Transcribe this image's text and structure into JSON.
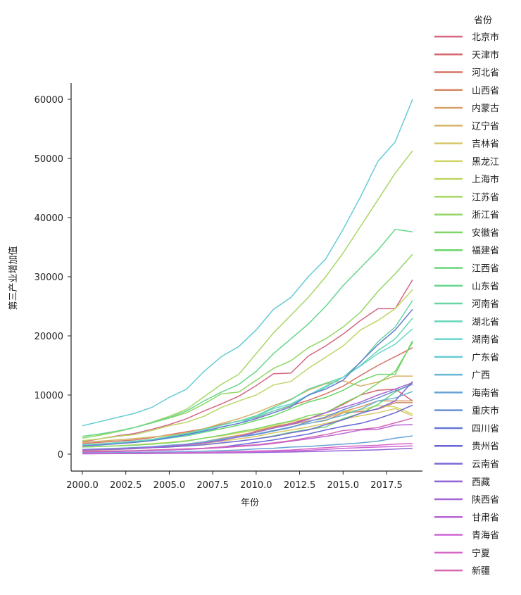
{
  "chart_data": {
    "type": "line",
    "title": "",
    "xlabel": "年份",
    "ylabel": "第三产业增加值",
    "xlim": [
      1999.2,
      2019.6
    ],
    "ylim": [
      -3000,
      63000
    ],
    "grid": false,
    "legend_placement": "right-outside",
    "legend_title": "省份",
    "xticks": [
      2000.0,
      2002.5,
      2005.0,
      2007.5,
      2010.0,
      2012.5,
      2015.0,
      2017.5
    ],
    "xtick_labels": [
      "2000.0",
      "2002.5",
      "2005.0",
      "2007.5",
      "2010.0",
      "2012.5",
      "2015.0",
      "2017.5"
    ],
    "yticks": [
      0,
      10000,
      20000,
      30000,
      40000,
      50000,
      60000
    ],
    "ytick_labels": [
      "0",
      "10000",
      "20000",
      "30000",
      "40000",
      "50000",
      "60000"
    ],
    "x": [
      2000,
      2001,
      2002,
      2003,
      2004,
      2005,
      2006,
      2007,
      2008,
      2009,
      2010,
      2011,
      2012,
      2013,
      2014,
      2015,
      2016,
      2017,
      2018,
      2019
    ],
    "series": [
      {
        "name": "北京市",
        "values": [
          2100,
          2600,
          3100,
          3500,
          4200,
          5000,
          6000,
          7300,
          8500,
          9800,
          11600,
          13600,
          13700,
          16600,
          18300,
          20300,
          22600,
          24600,
          24600,
          29500
        ]
      },
      {
        "name": "天津市",
        "values": [
          700,
          800,
          900,
          1000,
          1200,
          1400,
          1600,
          1900,
          2400,
          3000,
          3900,
          4600,
          5200,
          6000,
          7000,
          8400,
          10000,
          10800,
          11000,
          9000
        ]
      },
      {
        "name": "河北省",
        "values": [
          1800,
          2000,
          2200,
          2400,
          2800,
          3300,
          3800,
          4300,
          5000,
          5600,
          6200,
          7300,
          8200,
          9100,
          10200,
          11500,
          13300,
          15000,
          16500,
          18000
        ]
      },
      {
        "name": "山西省",
        "values": [
          750,
          850,
          950,
          1100,
          1250,
          1500,
          1700,
          2100,
          2600,
          3000,
          3400,
          4000,
          4600,
          5200,
          5700,
          7000,
          7200,
          7600,
          8700,
          8700
        ]
      },
      {
        "name": "内蒙古",
        "values": [
          600,
          700,
          800,
          900,
          1100,
          1400,
          1700,
          2100,
          2700,
          3200,
          3800,
          4500,
          5000,
          5600,
          6100,
          7200,
          8000,
          9000,
          9000,
          9000
        ]
      },
      {
        "name": "辽宁省",
        "values": [
          2000,
          2200,
          2400,
          2650,
          2900,
          3200,
          3600,
          4300,
          5200,
          6000,
          7000,
          8200,
          9300,
          10800,
          11900,
          12400,
          11500,
          12200,
          13200,
          13200
        ]
      },
      {
        "name": "吉林省",
        "values": [
          700,
          800,
          900,
          1000,
          1100,
          1300,
          1500,
          1800,
          2200,
          2600,
          3000,
          3600,
          4100,
          4600,
          5200,
          5900,
          6500,
          7000,
          7700,
          6500
        ]
      },
      {
        "name": "黑龙江",
        "values": [
          1200,
          1300,
          1400,
          1600,
          1800,
          2000,
          2300,
          2700,
          3100,
          3600,
          4100,
          4800,
          5500,
          6100,
          6600,
          7100,
          7500,
          8200,
          8000,
          6800
        ]
      },
      {
        "name": "上海市",
        "values": [
          2300,
          2600,
          3000,
          3300,
          4000,
          4800,
          5400,
          6400,
          7900,
          9000,
          10000,
          11700,
          12300,
          14500,
          16400,
          18300,
          21000,
          22600,
          24600,
          27800
        ]
      },
      {
        "name": "江苏省",
        "values": [
          3000,
          3400,
          3900,
          4500,
          5400,
          6400,
          7600,
          9700,
          11800,
          13500,
          17000,
          20500,
          23500,
          26500,
          30000,
          34000,
          38500,
          43000,
          47500,
          51300
        ]
      },
      {
        "name": "浙江省",
        "values": [
          2700,
          3200,
          3800,
          4500,
          5300,
          6100,
          7000,
          8500,
          10200,
          10500,
          12500,
          14500,
          15800,
          18000,
          19500,
          21500,
          24000,
          27500,
          30500,
          33800
        ]
      },
      {
        "name": "安徽省",
        "values": [
          1200,
          1300,
          1400,
          1500,
          1700,
          1900,
          2200,
          2700,
          3200,
          3800,
          4300,
          5000,
          5600,
          6500,
          7000,
          8600,
          10000,
          12000,
          14000,
          18900
        ]
      },
      {
        "name": "福建省",
        "values": [
          1550,
          1700,
          1850,
          2000,
          2300,
          2700,
          3100,
          3700,
          4300,
          4900,
          5700,
          6500,
          7700,
          8800,
          9600,
          10800,
          12400,
          13500,
          13500,
          19200
        ]
      },
      {
        "name": "江西省",
        "values": [
          700,
          780,
          850,
          950,
          1100,
          1200,
          1400,
          1600,
          1900,
          2200,
          2600,
          3100,
          3700,
          4200,
          4600,
          6000,
          6900,
          8400,
          10500,
          12000
        ]
      },
      {
        "name": "山东省",
        "values": [
          3000,
          3400,
          3900,
          4500,
          5300,
          6200,
          7300,
          9000,
          10500,
          11800,
          14000,
          17000,
          19500,
          22000,
          25000,
          28500,
          31500,
          34500,
          38000,
          37600
        ]
      },
      {
        "name": "河南省",
        "values": [
          1500,
          1700,
          1900,
          2100,
          2500,
          3000,
          3500,
          4200,
          4900,
          5600,
          6500,
          7900,
          9200,
          11000,
          12000,
          13000,
          15500,
          19000,
          21500,
          26000
        ]
      },
      {
        "name": "湖北省",
        "values": [
          1600,
          1750,
          1950,
          2200,
          2500,
          2900,
          3400,
          4100,
          4900,
          5600,
          6300,
          7300,
          8300,
          9900,
          11300,
          13000,
          15000,
          17500,
          19500,
          23000
        ]
      },
      {
        "name": "湖南省",
        "values": [
          1450,
          1600,
          1800,
          2000,
          2300,
          2700,
          3200,
          3800,
          4600,
          5200,
          6400,
          7700,
          8500,
          10000,
          11500,
          13000,
          14900,
          17000,
          18600,
          21200
        ]
      },
      {
        "name": "广东省",
        "values": [
          4800,
          5500,
          6200,
          6900,
          7900,
          9600,
          11000,
          14000,
          16500,
          18200,
          21000,
          24500,
          26500,
          30000,
          33000,
          38000,
          43500,
          49500,
          52800,
          60000
        ]
      },
      {
        "name": "广西",
        "values": [
          800,
          900,
          1000,
          1100,
          1300,
          1500,
          1700,
          2100,
          2600,
          3000,
          3400,
          4000,
          4600,
          5200,
          5800,
          6600,
          7600,
          9000,
          9500,
          10600
        ]
      },
      {
        "name": "海南省",
        "values": [
          200,
          230,
          260,
          290,
          330,
          380,
          430,
          510,
          600,
          700,
          890,
          1000,
          1200,
          1300,
          1500,
          1700,
          1900,
          2200,
          2700,
          3100
        ]
      },
      {
        "name": "重庆市",
        "values": [
          750,
          850,
          950,
          1100,
          1200,
          1400,
          1600,
          1900,
          2400,
          2900,
          3300,
          3900,
          4500,
          5500,
          6300,
          7500,
          8500,
          9500,
          10700,
          11800
        ]
      },
      {
        "name": "四川省",
        "values": [
          1400,
          1550,
          1750,
          2000,
          2300,
          2800,
          3300,
          3900,
          4600,
          5200,
          6000,
          7000,
          8000,
          10000,
          11000,
          12500,
          15600,
          18500,
          21000,
          24500
        ]
      },
      {
        "name": "贵州省",
        "values": [
          380,
          420,
          470,
          530,
          600,
          700,
          800,
          1000,
          1200,
          1600,
          2000,
          2400,
          2900,
          3400,
          4100,
          4700,
          5200,
          6000,
          7000,
          8300
        ]
      },
      {
        "name": "云南省",
        "values": [
          700,
          780,
          850,
          940,
          1100,
          1200,
          1400,
          1600,
          1900,
          2200,
          2600,
          3000,
          3600,
          4100,
          5000,
          5800,
          6900,
          7700,
          9000,
          12300
        ]
      },
      {
        "name": "西藏",
        "values": [
          60,
          70,
          85,
          100,
          110,
          130,
          150,
          180,
          210,
          240,
          280,
          320,
          370,
          430,
          500,
          580,
          660,
          730,
          870,
          1000
        ]
      },
      {
        "name": "陕西省",
        "values": [
          700,
          800,
          900,
          1000,
          1150,
          1350,
          1600,
          1900,
          2300,
          3000,
          3700,
          4400,
          5000,
          5900,
          7000,
          7900,
          8800,
          10000,
          11000,
          12100
        ]
      },
      {
        "name": "甘肃省",
        "values": [
          380,
          420,
          460,
          510,
          600,
          700,
          800,
          950,
          1100,
          1300,
          1500,
          1800,
          2200,
          2600,
          3000,
          3500,
          4100,
          4200,
          4900,
          5000
        ]
      },
      {
        "name": "青海省",
        "values": [
          100,
          115,
          130,
          150,
          170,
          200,
          230,
          270,
          320,
          370,
          430,
          500,
          550,
          650,
          800,
          980,
          1100,
          1200,
          1300,
          1400
        ]
      },
      {
        "name": "宁夏",
        "values": [
          100,
          120,
          140,
          160,
          190,
          220,
          260,
          300,
          380,
          450,
          540,
          600,
          700,
          900,
          1100,
          1300,
          1400,
          1500,
          1700,
          1800
        ]
      },
      {
        "name": "新疆",
        "values": [
          450,
          500,
          550,
          600,
          700,
          780,
          900,
          1000,
          1200,
          1400,
          1600,
          1900,
          2300,
          2800,
          3300,
          4000,
          4200,
          4500,
          5300,
          6100
        ]
      }
    ]
  }
}
